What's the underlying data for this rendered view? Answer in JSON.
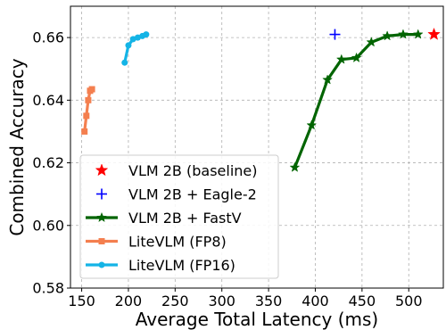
{
  "chart_data": {
    "type": "line",
    "title": "",
    "xlabel": "Average Total Latency (ms)",
    "ylabel": "Combined Accuracy",
    "xlim": [
      138,
      537
    ],
    "ylim": [
      0.58,
      0.67
    ],
    "xticks": [
      150,
      200,
      250,
      300,
      350,
      400,
      450,
      500
    ],
    "yticks": [
      0.58,
      0.6,
      0.62,
      0.64,
      0.66
    ],
    "ytick_labels": [
      "0.58",
      "0.60",
      "0.62",
      "0.64",
      "0.66"
    ],
    "grid": true,
    "legend_position": "lower-left",
    "series": [
      {
        "name": "VLM 2B (baseline)",
        "color": "#ff0000",
        "marker": "star",
        "line": false,
        "x": [
          527
        ],
        "y": [
          0.661
        ]
      },
      {
        "name": "VLM 2B + Eagle-2",
        "color": "#0000ff",
        "marker": "plus",
        "line": false,
        "x": [
          421
        ],
        "y": [
          0.661
        ]
      },
      {
        "name": "VLM 2B + FastV",
        "color": "#006400",
        "marker": "star",
        "line": true,
        "x": [
          378,
          396,
          413,
          428,
          444,
          460,
          477,
          494,
          510
        ],
        "y": [
          0.6185,
          0.632,
          0.6465,
          0.653,
          0.6535,
          0.6585,
          0.6605,
          0.661,
          0.661
        ]
      },
      {
        "name": "LiteVLM (FP8)",
        "color": "#f47f4f",
        "marker": "square",
        "line": true,
        "x": [
          153,
          155,
          157,
          159,
          161
        ],
        "y": [
          0.63,
          0.635,
          0.64,
          0.643,
          0.6435
        ]
      },
      {
        "name": "LiteVLM (FP16)",
        "color": "#14b4e6",
        "marker": "circle",
        "line": true,
        "x": [
          196,
          200,
          205,
          210,
          215,
          219
        ],
        "y": [
          0.652,
          0.6575,
          0.6595,
          0.66,
          0.6605,
          0.661
        ]
      }
    ]
  }
}
